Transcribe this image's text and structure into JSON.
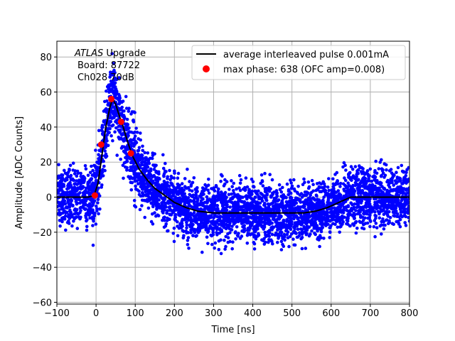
{
  "chart_data": {
    "type": "scatter",
    "title": "",
    "xlabel": "Time [ns]",
    "ylabel": "Amplitude [ADC Counts]",
    "xlim": [
      -100,
      800
    ],
    "ylim": [
      -61,
      89
    ],
    "xticks": [
      -100,
      0,
      100,
      200,
      300,
      400,
      500,
      600,
      700,
      800
    ],
    "yticks": [
      -60,
      -40,
      -20,
      0,
      20,
      40,
      60,
      80
    ],
    "xtick_labels": [
      "−100",
      "0",
      "100",
      "200",
      "300",
      "400",
      "500",
      "600",
      "700",
      "800"
    ],
    "ytick_labels": [
      "−60",
      "−40",
      "−20",
      "0",
      "20",
      "40",
      "60",
      "80"
    ],
    "grid": true,
    "annotation": {
      "line1_italic": "ATLAS",
      "line1_rest": " Upgrade",
      "line2": "Board: 87722",
      "line3": "Ch028 70dB"
    },
    "legend": {
      "placement": "top-right",
      "entries": [
        "average interleaved pulse 0.001mA",
        "max phase: 638 (OFC amp=0.008)"
      ]
    },
    "series": [
      {
        "name": "average interleaved pulse 0.001mA",
        "kind": "line",
        "color": "#000000",
        "x": [
          -100,
          -70,
          -40,
          -20,
          -5,
          5,
          15,
          25,
          35,
          42,
          50,
          60,
          68,
          80,
          92,
          110,
          130,
          150,
          175,
          200,
          230,
          260,
          300,
          350,
          400,
          450,
          500,
          530,
          560,
          590,
          620,
          650,
          680,
          700,
          730,
          760,
          800
        ],
        "y": [
          0,
          0,
          0,
          0,
          1,
          8,
          24,
          40,
          51,
          56,
          53,
          46,
          41,
          32,
          24,
          16,
          10,
          5,
          1,
          -3,
          -6,
          -8,
          -9,
          -9,
          -9,
          -9,
          -9,
          -9,
          -8,
          -6,
          -3,
          0,
          0,
          0,
          0,
          0,
          0
        ]
      },
      {
        "name": "max phase: 638 (OFC amp=0.008)",
        "kind": "points",
        "color": "#ff0000",
        "x": [
          -3,
          13,
          39,
          64,
          89
        ],
        "y": [
          1,
          30,
          56,
          43,
          25
        ]
      },
      {
        "name": "samples",
        "kind": "scatter-cloud",
        "color": "#0000ff",
        "description_values": {
          "spread_baseline": 13,
          "spread_peak": 16
        }
      }
    ]
  }
}
